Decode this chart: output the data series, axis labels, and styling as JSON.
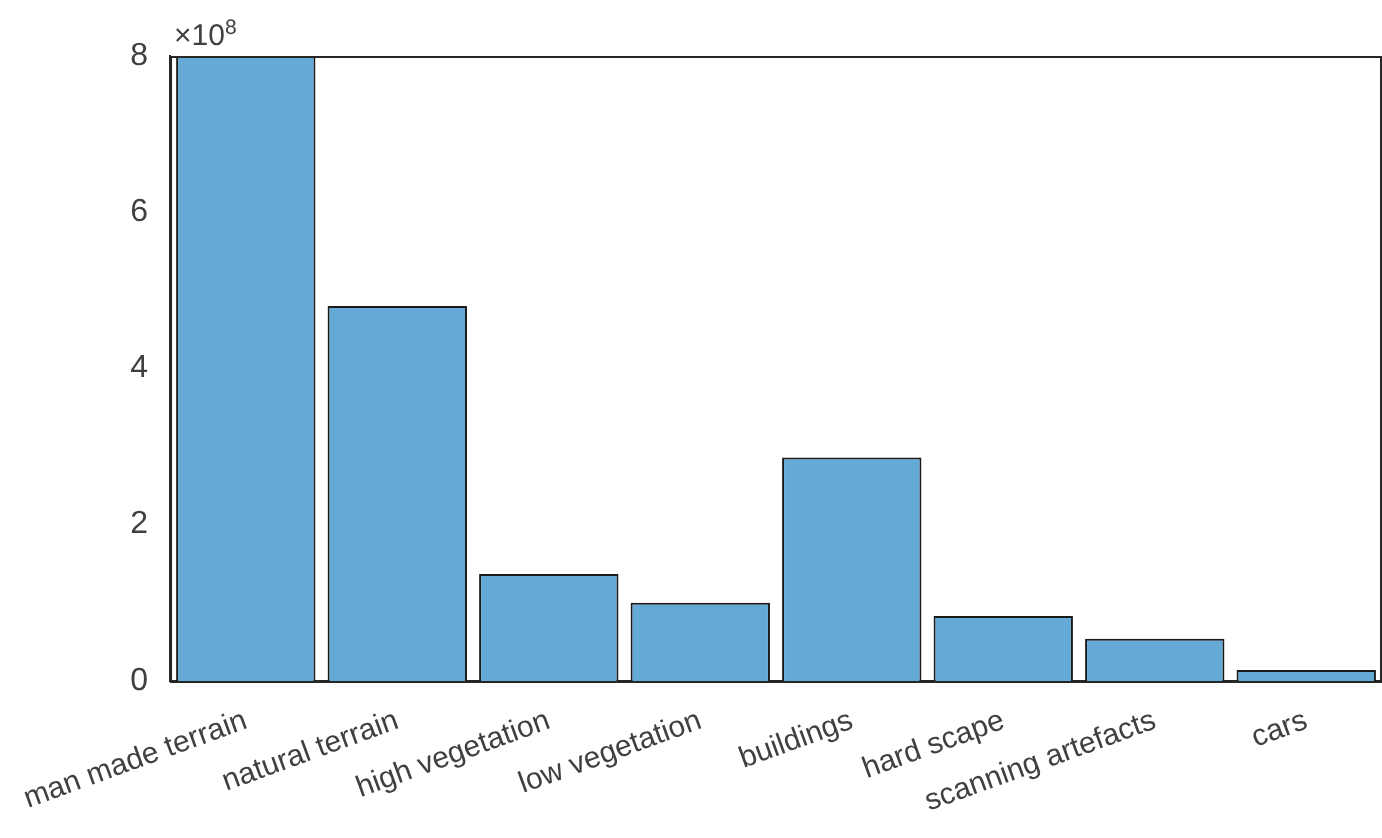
{
  "chart_data": {
    "type": "bar",
    "categories": [
      "man made terrain",
      "natural terrain",
      "high vegetation",
      "low vegetation",
      "buildings",
      "hard scape",
      "scanning artefacts",
      "cars"
    ],
    "values": [
      8.0,
      4.8,
      1.37,
      1.0,
      2.86,
      0.83,
      0.54,
      0.14
    ],
    "color": "#65a9d7",
    "ylim": [
      0,
      8
    ],
    "yticks": [
      0,
      2,
      4,
      6,
      8
    ],
    "grid": false,
    "legend": false,
    "annotations": [
      "×10$^{8}$"
    ]
  }
}
